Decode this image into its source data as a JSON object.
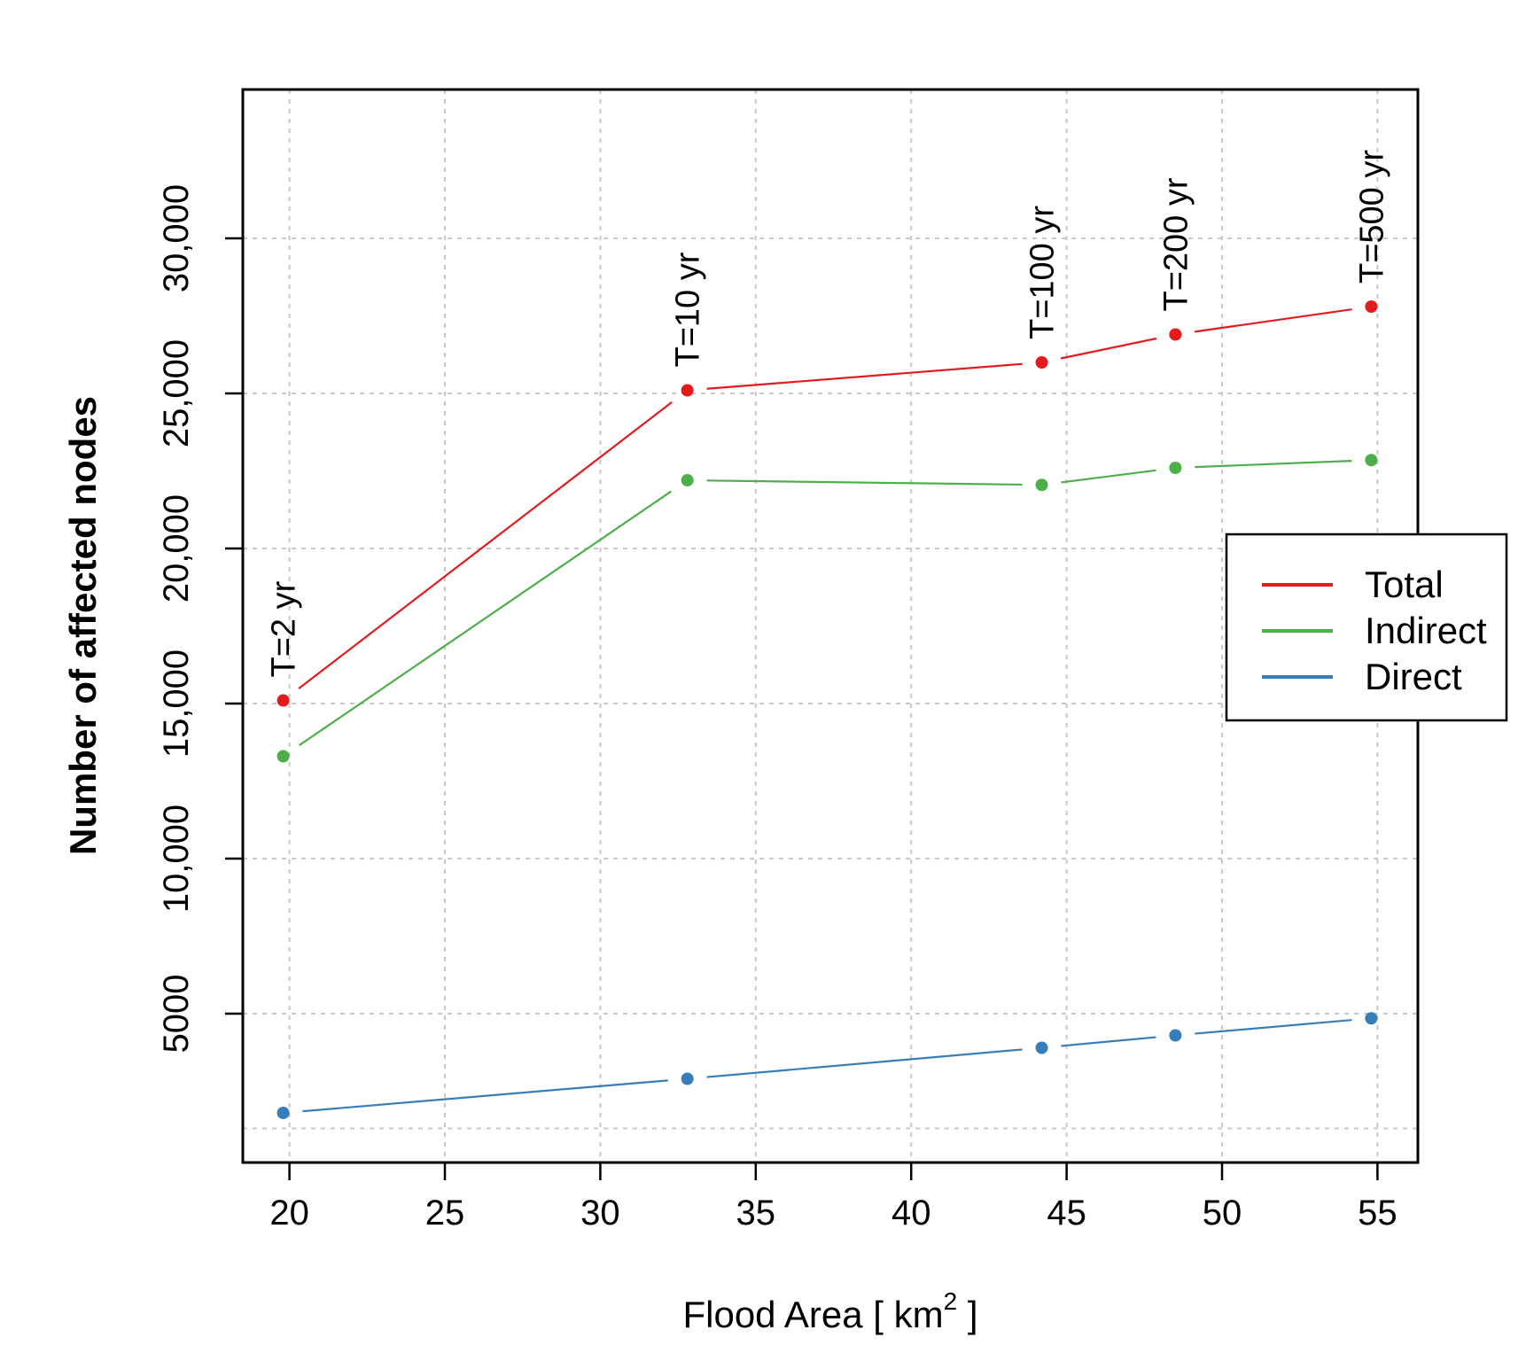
{
  "chart_data": {
    "type": "line",
    "xlabel": "Flood Area [ km",
    "xlabel_sup": "2",
    "xlabel_end": " ]",
    "ylabel": "Number of affected nodes",
    "xlim": [
      18.5,
      56.3
    ],
    "ylim": [
      200,
      34800
    ],
    "xticks": [
      20,
      25,
      30,
      35,
      40,
      45,
      50,
      55
    ],
    "xtick_labels": [
      "20",
      "25",
      "30",
      "35",
      "40",
      "45",
      "50",
      "55"
    ],
    "yticks": [
      5000,
      10000,
      15000,
      20000,
      25000,
      30000
    ],
    "ytick_labels": [
      "5000",
      "10,000",
      "15,000",
      "20,000",
      "25,000",
      "30,000"
    ],
    "x_grid_extra": [],
    "y_grid_extra": [
      1300
    ],
    "grid": true,
    "x": [
      19.8,
      32.8,
      44.2,
      48.5,
      54.8
    ],
    "series": [
      {
        "name": "Total",
        "color": "#e41a1c",
        "values": [
          15100,
          25100,
          26000,
          26900,
          27800
        ]
      },
      {
        "name": "Indirect",
        "color": "#4daf4a",
        "values": [
          13300,
          22200,
          22050,
          22600,
          22850
        ]
      },
      {
        "name": "Direct",
        "color": "#377eb8",
        "values": [
          1800,
          2900,
          3900,
          4300,
          4850
        ]
      }
    ],
    "annotations": [
      {
        "text": "T=2 yr",
        "x": 19.8,
        "y": 15100
      },
      {
        "text": "T=10 yr",
        "x": 32.8,
        "y": 25100
      },
      {
        "text": "T=100 yr",
        "x": 44.2,
        "y": 26000
      },
      {
        "text": "T=200 yr",
        "x": 48.5,
        "y": 26900
      },
      {
        "text": "T=500 yr",
        "x": 54.8,
        "y": 27800
      }
    ],
    "legend": {
      "position": "right",
      "entries": [
        "Total",
        "Indirect",
        "Direct"
      ]
    }
  }
}
